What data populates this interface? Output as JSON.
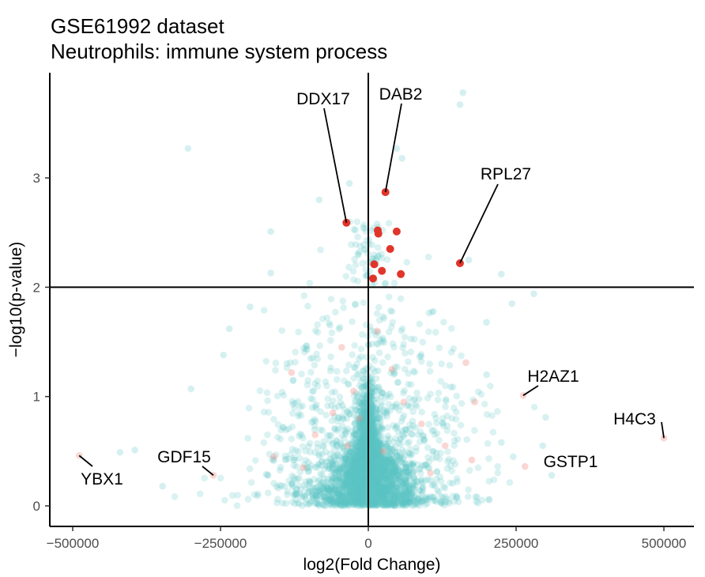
{
  "chart_data": {
    "type": "scatter",
    "title": "GSE61992 dataset",
    "subtitle": "Neutrophils: immune system process",
    "xlabel": "log2(Fold Change)",
    "ylabel": "-log10(p-value)",
    "xlim": [
      -500000,
      500000
    ],
    "ylim": [
      0,
      3.9
    ],
    "x_ticks": [
      -500000,
      -250000,
      0,
      250000,
      500000
    ],
    "x_tick_labels": [
      "-500000",
      "-250000",
      "0",
      "250000",
      "500000"
    ],
    "y_ticks": [
      0,
      1,
      2,
      3
    ],
    "y_tick_labels": [
      "0",
      "1",
      "2",
      "3"
    ],
    "threshold_y": 2,
    "threshold_x": 0,
    "grid": false,
    "colors": {
      "background_points": "#5bc4c6",
      "immune_points": "#f08d85",
      "significant_points": "#e0352b"
    },
    "significant_points": [
      {
        "x": -37000,
        "y": 2.59
      },
      {
        "x": 29000,
        "y": 2.87
      },
      {
        "x": 16000,
        "y": 2.52
      },
      {
        "x": 17000,
        "y": 2.49
      },
      {
        "x": 48000,
        "y": 2.51
      },
      {
        "x": 37000,
        "y": 2.35
      },
      {
        "x": 10000,
        "y": 2.21
      },
      {
        "x": 23000,
        "y": 2.15
      },
      {
        "x": 55000,
        "y": 2.12
      },
      {
        "x": 8000,
        "y": 2.08
      },
      {
        "x": 155000,
        "y": 2.22
      }
    ],
    "immune_points": [
      {
        "x": -489000,
        "y": 0.46
      },
      {
        "x": -262000,
        "y": 0.28
      },
      {
        "x": 262000,
        "y": 1.01
      },
      {
        "x": 500000,
        "y": 0.62
      },
      {
        "x": 265000,
        "y": 0.36
      },
      {
        "x": -130000,
        "y": 1.22
      },
      {
        "x": 165000,
        "y": 1.31
      },
      {
        "x": -25000,
        "y": 1.05
      },
      {
        "x": 90000,
        "y": 0.75
      },
      {
        "x": -60000,
        "y": 0.85
      },
      {
        "x": 40000,
        "y": 1.25
      },
      {
        "x": -90000,
        "y": 0.65
      },
      {
        "x": 130000,
        "y": 0.55
      },
      {
        "x": -160000,
        "y": 0.45
      },
      {
        "x": 60000,
        "y": 0.95
      },
      {
        "x": -35000,
        "y": 0.55
      },
      {
        "x": 25000,
        "y": 0.5
      },
      {
        "x": 175000,
        "y": 0.42
      },
      {
        "x": 180000,
        "y": 0.95
      },
      {
        "x": -45000,
        "y": 1.45
      },
      {
        "x": 15000,
        "y": 1.6
      },
      {
        "x": -110000,
        "y": 0.35
      },
      {
        "x": 105000,
        "y": 0.3
      },
      {
        "x": -15000,
        "y": 0.8
      }
    ],
    "background_points_notable": [
      {
        "x": -305000,
        "y": 3.27
      },
      {
        "x": 160000,
        "y": 3.78
      },
      {
        "x": 155000,
        "y": 3.67
      },
      {
        "x": 48000,
        "y": 3.27
      },
      {
        "x": 57000,
        "y": 3.18
      },
      {
        "x": -32000,
        "y": 2.95
      },
      {
        "x": -83000,
        "y": 2.8
      },
      {
        "x": -165000,
        "y": 2.51
      },
      {
        "x": -165000,
        "y": 2.13
      },
      {
        "x": 170000,
        "y": 2.25
      },
      {
        "x": 225000,
        "y": 2.12
      },
      {
        "x": 280000,
        "y": 1.94
      },
      {
        "x": 243000,
        "y": 1.85
      },
      {
        "x": -300000,
        "y": 1.07
      },
      {
        "x": 310000,
        "y": 0.28
      },
      {
        "x": 300000,
        "y": 0.81
      },
      {
        "x": -348000,
        "y": 0.18
      },
      {
        "x": -420000,
        "y": 0.49
      },
      {
        "x": -395000,
        "y": 0.51
      },
      {
        "x": -235000,
        "y": 1.62
      },
      {
        "x": -245000,
        "y": 1.38
      },
      {
        "x": 200000,
        "y": 1.2
      },
      {
        "x": 225000,
        "y": 0.58
      },
      {
        "x": 295000,
        "y": 0.55
      },
      {
        "x": 245000,
        "y": 0.45
      },
      {
        "x": -200000,
        "y": 1.82
      },
      {
        "x": 200000,
        "y": 1.68
      }
    ],
    "labels": [
      {
        "text": "DDX17",
        "x": -37000,
        "y": 2.59
      },
      {
        "text": "DAB2",
        "x": 29000,
        "y": 2.87
      },
      {
        "text": "RPL27",
        "x": 155000,
        "y": 2.22
      },
      {
        "text": "H2AZ1",
        "x": 262000,
        "y": 1.01
      },
      {
        "text": "H4C3",
        "x": 500000,
        "y": 0.62
      },
      {
        "text": "GSTP1",
        "x": 265000,
        "y": 0.36
      },
      {
        "text": "GDF15",
        "x": -262000,
        "y": 0.28
      },
      {
        "text": "YBX1",
        "x": -489000,
        "y": 0.46
      }
    ]
  }
}
